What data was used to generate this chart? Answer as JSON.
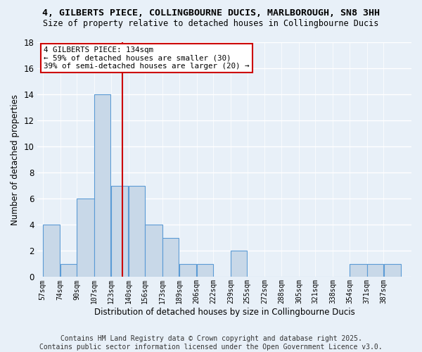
{
  "title_line1": "4, GILBERTS PIECE, COLLINGBOURNE DUCIS, MARLBOROUGH, SN8 3HH",
  "title_line2": "Size of property relative to detached houses in Collingbourne Ducis",
  "xlabel": "Distribution of detached houses by size in Collingbourne Ducis",
  "ylabel": "Number of detached properties",
  "bin_edges": [
    57,
    74,
    90,
    107,
    123,
    140,
    156,
    173,
    189,
    206,
    222,
    239,
    255,
    272,
    288,
    305,
    321,
    338,
    354,
    371,
    387,
    404
  ],
  "tick_labels": [
    "57sqm",
    "74sqm",
    "90sqm",
    "107sqm",
    "123sqm",
    "140sqm",
    "156sqm",
    "173sqm",
    "189sqm",
    "206sqm",
    "222sqm",
    "239sqm",
    "255sqm",
    "272sqm",
    "288sqm",
    "305sqm",
    "321sqm",
    "338sqm",
    "354sqm",
    "371sqm",
    "387sqm"
  ],
  "values": [
    4,
    1,
    6,
    14,
    7,
    7,
    4,
    3,
    1,
    1,
    0,
    2,
    0,
    0,
    0,
    0,
    0,
    0,
    1,
    1,
    1
  ],
  "bar_color": "#c8d8e8",
  "bar_edge_color": "#5b9bd5",
  "red_line_x": 134,
  "annotation_text": "4 GILBERTS PIECE: 134sqm\n← 59% of detached houses are smaller (30)\n39% of semi-detached houses are larger (20) →",
  "annotation_box_color": "#ffffff",
  "annotation_edge_color": "#cc0000",
  "ylim": [
    0,
    18
  ],
  "yticks": [
    0,
    2,
    4,
    6,
    8,
    10,
    12,
    14,
    16,
    18
  ],
  "background_color": "#e8f0f8",
  "grid_color": "#ffffff",
  "footer_text": "Contains HM Land Registry data © Crown copyright and database right 2025.\nContains public sector information licensed under the Open Government Licence v3.0."
}
